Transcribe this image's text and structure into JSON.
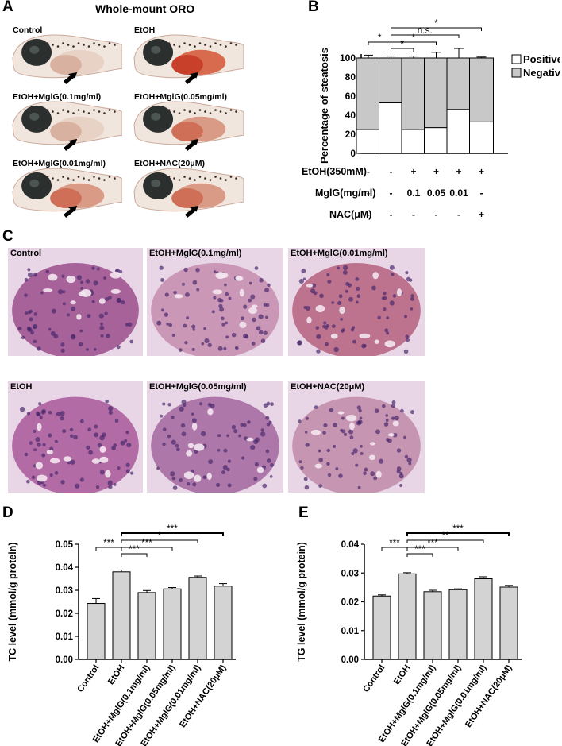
{
  "panels": {
    "A": "A",
    "B": "B",
    "C": "C",
    "D": "D",
    "E": "E"
  },
  "panel_a": {
    "title": "Whole-mount ORO",
    "images": [
      {
        "label": "Control",
        "stain": "light"
      },
      {
        "label": "EtOH",
        "stain": "heavy"
      },
      {
        "label": "EtOH+MglG(0.1mg/ml)",
        "stain": "light"
      },
      {
        "label": "EtOH+MglG(0.05mg/ml)",
        "stain": "medium"
      },
      {
        "label": "EtOH+MglG(0.01mg/ml)",
        "stain": "medium"
      },
      {
        "label": "EtOH+NAC(20μM)",
        "stain": "medium"
      }
    ]
  },
  "panel_c": {
    "images": [
      {
        "label": "Control",
        "tone": "#9b4d8c"
      },
      {
        "label": "EtOH+MglG(0.1mg/ml)",
        "tone": "#c58cae"
      },
      {
        "label": "EtOH+MglG(0.01mg/ml)",
        "tone": "#b5607e"
      },
      {
        "label": "EtOH",
        "tone": "#a9589a"
      },
      {
        "label": "EtOH+MglG(0.05mg/ml)",
        "tone": "#a2679e"
      },
      {
        "label": "EtOH+NAC(20μM)",
        "tone": "#c08aa8"
      }
    ]
  },
  "chart_data": [
    {
      "panel": "B",
      "type": "bar",
      "stacked": true,
      "ylabel": "Percentage of steatosis",
      "ylim": [
        0,
        100
      ],
      "yticks": [
        0,
        20,
        40,
        60,
        80,
        100
      ],
      "n_groups": 6,
      "series": [
        {
          "name": "Positive",
          "color": "#ffffff",
          "values": [
            25,
            53,
            25,
            27,
            46,
            33
          ],
          "errors": [
            5,
            3,
            3,
            6,
            10,
            1
          ]
        },
        {
          "name": "Negative",
          "color": "#c8c8c8",
          "values": [
            75,
            47,
            75,
            73,
            54,
            67
          ],
          "errors": [
            3,
            2,
            2,
            6,
            10,
            1
          ]
        }
      ],
      "legend_position": "top-right",
      "conditions": [
        {
          "label": "EtOH(350mM)",
          "values": [
            "-",
            "-",
            "+",
            "+",
            "+",
            "+"
          ]
        },
        {
          "label": "MglG(mg/ml)",
          "values": [
            "-",
            "-",
            "0.1",
            "0.05",
            "0.01",
            "-"
          ]
        },
        {
          "label": "NAC(μM)",
          "values": [
            "-",
            "-",
            "-",
            "-",
            "-",
            "+"
          ]
        }
      ],
      "annotations": [
        {
          "from": 0,
          "to": 1,
          "text": "*",
          "level": 1
        },
        {
          "from": 1,
          "to": 2,
          "text": "*",
          "level": 0
        },
        {
          "from": 1,
          "to": 3,
          "text": "*",
          "level": 1
        },
        {
          "from": 1,
          "to": 4,
          "text": "n.s.",
          "level": 2
        },
        {
          "from": 1,
          "to": 5,
          "text": "*",
          "level": 3
        }
      ]
    },
    {
      "panel": "D",
      "type": "bar",
      "ylabel": "TC level (mmol/g protein)",
      "ylim": [
        0,
        0.05
      ],
      "yticks": [
        "0.00",
        "0.01",
        "0.02",
        "0.03",
        "0.04",
        "0.05"
      ],
      "categories": [
        "Control",
        "EtOH",
        "EtOH+MglG(0.1mg/ml)",
        "EtOH+MglG(0.05mg/ml)",
        "EtOH+MglG(0.01mg/ml)",
        "EtOH+NAC(20μM)"
      ],
      "values": [
        0.0243,
        0.038,
        0.029,
        0.0306,
        0.0356,
        0.0318
      ],
      "errors": [
        0.0021,
        0.0008,
        0.0009,
        0.0006,
        0.0006,
        0.0011
      ],
      "color": "#d3d3d3",
      "annotations": [
        {
          "from": 0,
          "to": 1,
          "text": "***",
          "level": 1
        },
        {
          "from": 1,
          "to": 2,
          "text": "***",
          "level": 0
        },
        {
          "from": 1,
          "to": 3,
          "text": "***",
          "level": 1
        },
        {
          "from": 1,
          "to": 4,
          "text": "*",
          "level": 2
        },
        {
          "from": 1,
          "to": 5,
          "text": "***",
          "level": 3
        }
      ]
    },
    {
      "panel": "E",
      "type": "bar",
      "ylabel": "TG level (mmol/g protein)",
      "ylim": [
        0,
        0.04
      ],
      "yticks": [
        "0.00",
        "0.01",
        "0.02",
        "0.03",
        "0.04"
      ],
      "categories": [
        "Control",
        "EtOH",
        "EtOH+MglG(0.1mg/ml)",
        "EtOH+MglG(0.05mg/ml)",
        "EtOH+MglG(0.01mg/ml)",
        "EtOH+NAC(20μM)"
      ],
      "values": [
        0.022,
        0.0297,
        0.0235,
        0.0242,
        0.028,
        0.0251
      ],
      "errors": [
        0.0004,
        0.0004,
        0.0005,
        0.0003,
        0.0007,
        0.0006
      ],
      "color": "#d3d3d3",
      "annotations": [
        {
          "from": 0,
          "to": 1,
          "text": "***",
          "level": 1
        },
        {
          "from": 1,
          "to": 2,
          "text": "***",
          "level": 0
        },
        {
          "from": 1,
          "to": 3,
          "text": "***",
          "level": 1
        },
        {
          "from": 1,
          "to": 4,
          "text": "**",
          "level": 2
        },
        {
          "from": 1,
          "to": 5,
          "text": "***",
          "level": 3
        }
      ]
    }
  ]
}
